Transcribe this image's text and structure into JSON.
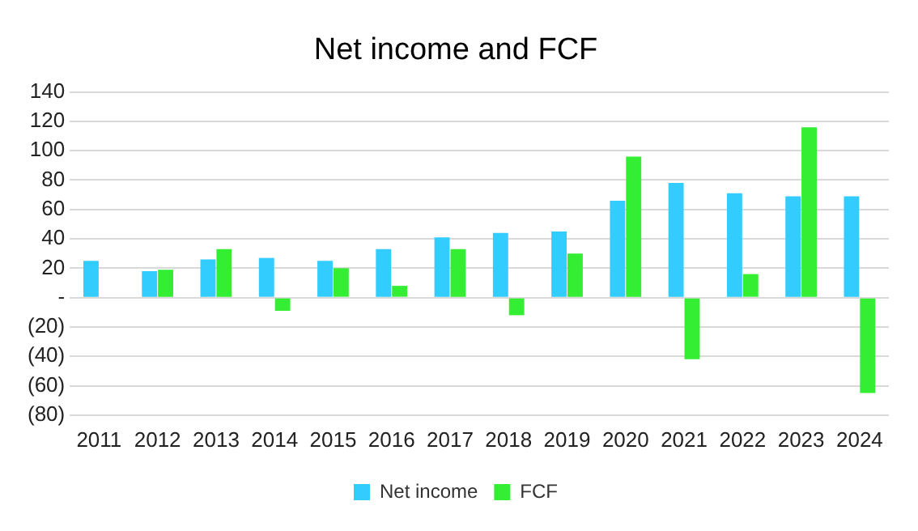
{
  "chart_data": {
    "type": "bar",
    "title": "Net income and FCF",
    "categories": [
      "2011",
      "2012",
      "2013",
      "2014",
      "2015",
      "2016",
      "2017",
      "2018",
      "2019",
      "2020",
      "2021",
      "2022",
      "2023",
      "2024"
    ],
    "series": [
      {
        "name": "Net income",
        "color": "#33ccff",
        "values": [
          25,
          18,
          26,
          27,
          25,
          33,
          41,
          44,
          45,
          66,
          78,
          71,
          69,
          69
        ]
      },
      {
        "name": "FCF",
        "color": "#33ee33",
        "values": [
          null,
          19,
          33,
          -9,
          20,
          8,
          33,
          -12,
          30,
          96,
          -42,
          16,
          116,
          -65
        ]
      }
    ],
    "ylim": [
      -80,
      140
    ],
    "yticks": [
      {
        "value": -80,
        "label": "(80)"
      },
      {
        "value": -60,
        "label": "(60)"
      },
      {
        "value": -40,
        "label": "(40)"
      },
      {
        "value": -20,
        "label": "(20)"
      },
      {
        "value": 0,
        "label": "-"
      },
      20,
      40,
      60,
      80,
      100,
      120,
      140
    ],
    "grid": "y",
    "legend": "bottom"
  }
}
